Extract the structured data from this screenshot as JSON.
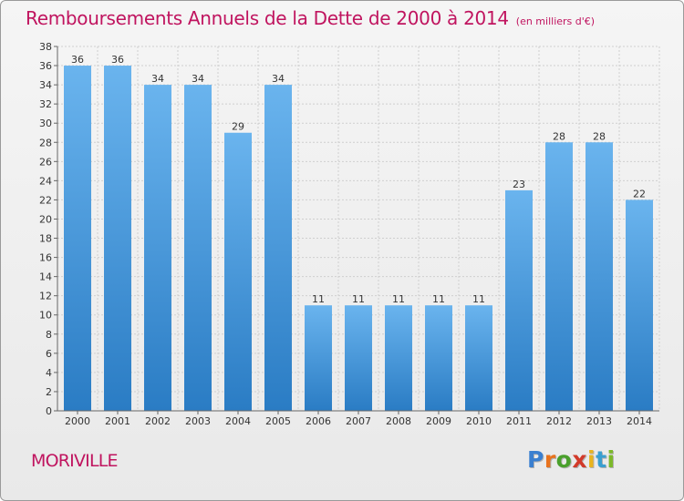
{
  "title": "Remboursements Annuels de la Dette de 2000 à 2014",
  "subtitle": "(en milliers d'€)",
  "commune": "MORIVILLE",
  "logo": {
    "letters": [
      "P",
      "r",
      "o",
      "x",
      "i",
      "t",
      "i"
    ],
    "colors": [
      "#3a7fd0",
      "#e8731e",
      "#4aa02c",
      "#d23a2a",
      "#e8b41e",
      "#3a9fd0",
      "#7cb82a"
    ]
  },
  "colors": {
    "accent": "#c0145f",
    "bar_light": "#6ab4ee",
    "bar_dark": "#2a7cc4"
  },
  "chart_data": {
    "type": "bar",
    "categories": [
      "2000",
      "2001",
      "2002",
      "2003",
      "2004",
      "2005",
      "2006",
      "2007",
      "2008",
      "2009",
      "2010",
      "2011",
      "2012",
      "2013",
      "2014"
    ],
    "values": [
      36,
      36,
      34,
      34,
      29,
      34,
      11,
      11,
      11,
      11,
      11,
      23,
      28,
      28,
      22
    ],
    "ylim": [
      0,
      38
    ],
    "ytick_step": 2,
    "grid": true,
    "data_labels": true
  }
}
